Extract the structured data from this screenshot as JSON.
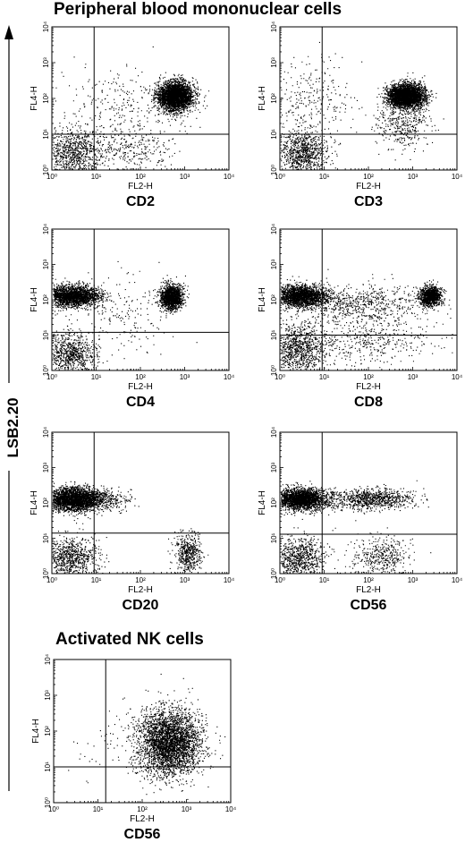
{
  "title_top": "Peripheral blood mononuclear cells",
  "title_nk": "Activated NK cells",
  "side_label": "LSB2.20",
  "chart_data": [
    {
      "type": "scatter",
      "marker": "CD2",
      "xlabel": "FL2-H",
      "ylabel": "FL4-H",
      "xscale": "log",
      "yscale": "log",
      "xlim": [
        1,
        10000
      ],
      "ylim": [
        1,
        10000
      ],
      "x_ticks": [
        "10⁰",
        "10¹",
        "10²",
        "10³",
        "10⁴"
      ],
      "y_ticks": [
        "10⁰",
        "10¹",
        "10²",
        "10³",
        "10⁴"
      ],
      "gate": {
        "x": 9,
        "y": 10
      },
      "populations": [
        {
          "x": 3,
          "y": 3,
          "sx": 0.35,
          "sy": 0.35,
          "n": 900
        },
        {
          "x": 600,
          "y": 120,
          "sx": 0.2,
          "sy": 0.2,
          "n": 3200
        },
        {
          "x": 60,
          "y": 4,
          "sx": 0.5,
          "sy": 0.3,
          "n": 300
        },
        {
          "x": 30,
          "y": 60,
          "sx": 0.7,
          "sy": 0.5,
          "n": 250
        }
      ]
    },
    {
      "type": "scatter",
      "marker": "CD3",
      "xlabel": "FL2-H",
      "ylabel": "FL4-H",
      "xscale": "log",
      "yscale": "log",
      "xlim": [
        1,
        10000
      ],
      "ylim": [
        1,
        10000
      ],
      "x_ticks": [
        "10⁰",
        "10¹",
        "10²",
        "10³",
        "10⁴"
      ],
      "y_ticks": [
        "10⁰",
        "10¹",
        "10²",
        "10³",
        "10⁴"
      ],
      "gate": {
        "x": 9,
        "y": 10
      },
      "populations": [
        {
          "x": 3,
          "y": 3,
          "sx": 0.3,
          "sy": 0.3,
          "n": 900
        },
        {
          "x": 700,
          "y": 120,
          "sx": 0.2,
          "sy": 0.16,
          "n": 3500
        },
        {
          "x": 600,
          "y": 20,
          "sx": 0.3,
          "sy": 0.35,
          "n": 400
        },
        {
          "x": 5,
          "y": 80,
          "sx": 0.5,
          "sy": 0.6,
          "n": 300
        }
      ]
    },
    {
      "type": "scatter",
      "marker": "CD4",
      "xlabel": "FL2-H",
      "ylabel": "FL4-H",
      "xscale": "log",
      "yscale": "log",
      "xlim": [
        1,
        10000
      ],
      "ylim": [
        1,
        10000
      ],
      "x_ticks": [
        "10⁰",
        "10¹",
        "10²",
        "10³",
        "10⁴"
      ],
      "y_ticks": [
        "10⁰",
        "10¹",
        "10²",
        "10³",
        "10⁴"
      ],
      "gate": {
        "x": 9,
        "y": 12
      },
      "populations": [
        {
          "x": 2.5,
          "y": 3,
          "sx": 0.3,
          "sy": 0.3,
          "n": 800
        },
        {
          "x": 3,
          "y": 130,
          "sx": 0.3,
          "sy": 0.15,
          "n": 2200
        },
        {
          "x": 500,
          "y": 120,
          "sx": 0.13,
          "sy": 0.18,
          "n": 1500
        },
        {
          "x": 40,
          "y": 40,
          "sx": 0.6,
          "sy": 0.6,
          "n": 200
        }
      ]
    },
    {
      "type": "scatter",
      "marker": "CD8",
      "xlabel": "FL2-H",
      "ylabel": "FL4-H",
      "xscale": "log",
      "yscale": "log",
      "xlim": [
        1,
        10000
      ],
      "ylim": [
        1,
        10000
      ],
      "x_ticks": [
        "10⁰",
        "10¹",
        "10²",
        "10³",
        "10⁴"
      ],
      "y_ticks": [
        "10⁰",
        "10¹",
        "10²",
        "10³",
        "10⁴"
      ],
      "gate": {
        "x": 9,
        "y": 10
      },
      "populations": [
        {
          "x": 2.5,
          "y": 4,
          "sx": 0.3,
          "sy": 0.35,
          "n": 900
        },
        {
          "x": 3,
          "y": 130,
          "sx": 0.3,
          "sy": 0.15,
          "n": 2200
        },
        {
          "x": 2500,
          "y": 130,
          "sx": 0.12,
          "sy": 0.14,
          "n": 1200
        },
        {
          "x": 60,
          "y": 80,
          "sx": 0.8,
          "sy": 0.25,
          "n": 700
        },
        {
          "x": 80,
          "y": 8,
          "sx": 0.8,
          "sy": 0.35,
          "n": 500
        }
      ]
    },
    {
      "type": "scatter",
      "marker": "CD20",
      "xlabel": "FL2-H",
      "ylabel": "FL4-H",
      "xscale": "log",
      "yscale": "log",
      "xlim": [
        1,
        10000
      ],
      "ylim": [
        1,
        10000
      ],
      "x_ticks": [
        "10⁰",
        "10¹",
        "10²",
        "10³",
        "10⁴"
      ],
      "y_ticks": [
        "10⁰",
        "10¹",
        "10²",
        "10³",
        "10⁴"
      ],
      "gate": {
        "x": 9,
        "y": 14
      },
      "populations": [
        {
          "x": 2.5,
          "y": 3,
          "sx": 0.3,
          "sy": 0.3,
          "n": 800
        },
        {
          "x": 3,
          "y": 130,
          "sx": 0.32,
          "sy": 0.16,
          "n": 2800
        },
        {
          "x": 1200,
          "y": 4,
          "sx": 0.15,
          "sy": 0.3,
          "n": 500
        },
        {
          "x": 15,
          "y": 120,
          "sx": 0.3,
          "sy": 0.15,
          "n": 300
        }
      ]
    },
    {
      "type": "scatter",
      "marker": "CD56",
      "xlabel": "FL2-H",
      "ylabel": "FL4-H",
      "xscale": "log",
      "yscale": "log",
      "xlim": [
        1,
        10000
      ],
      "ylim": [
        1,
        10000
      ],
      "x_ticks": [
        "10⁰",
        "10¹",
        "10²",
        "10³",
        "10⁴"
      ],
      "y_ticks": [
        "10⁰",
        "10¹",
        "10²",
        "10³",
        "10⁴"
      ],
      "gate": {
        "x": 9,
        "y": 13
      },
      "populations": [
        {
          "x": 2.5,
          "y": 3,
          "sx": 0.3,
          "sy": 0.3,
          "n": 800
        },
        {
          "x": 3,
          "y": 130,
          "sx": 0.3,
          "sy": 0.15,
          "n": 2400
        },
        {
          "x": 120,
          "y": 130,
          "sx": 0.5,
          "sy": 0.15,
          "n": 900
        },
        {
          "x": 200,
          "y": 3,
          "sx": 0.3,
          "sy": 0.3,
          "n": 400
        }
      ]
    },
    {
      "type": "scatter",
      "marker": "CD56",
      "xlabel": "FL2-H",
      "ylabel": "FL4-H",
      "xscale": "log",
      "yscale": "log",
      "xlim": [
        1,
        10000
      ],
      "ylim": [
        1,
        10000
      ],
      "x_ticks": [
        "10⁰",
        "10¹",
        "10²",
        "10³",
        "10⁴"
      ],
      "y_ticks": [
        "10⁰",
        "10¹",
        "10²",
        "10³",
        "10⁴"
      ],
      "gate": {
        "x": 15,
        "y": 10
      },
      "populations": [
        {
          "x": 400,
          "y": 50,
          "sx": 0.35,
          "sy": 0.45,
          "n": 3500
        },
        {
          "x": 40,
          "y": 40,
          "sx": 0.6,
          "sy": 0.6,
          "n": 80
        }
      ]
    }
  ]
}
